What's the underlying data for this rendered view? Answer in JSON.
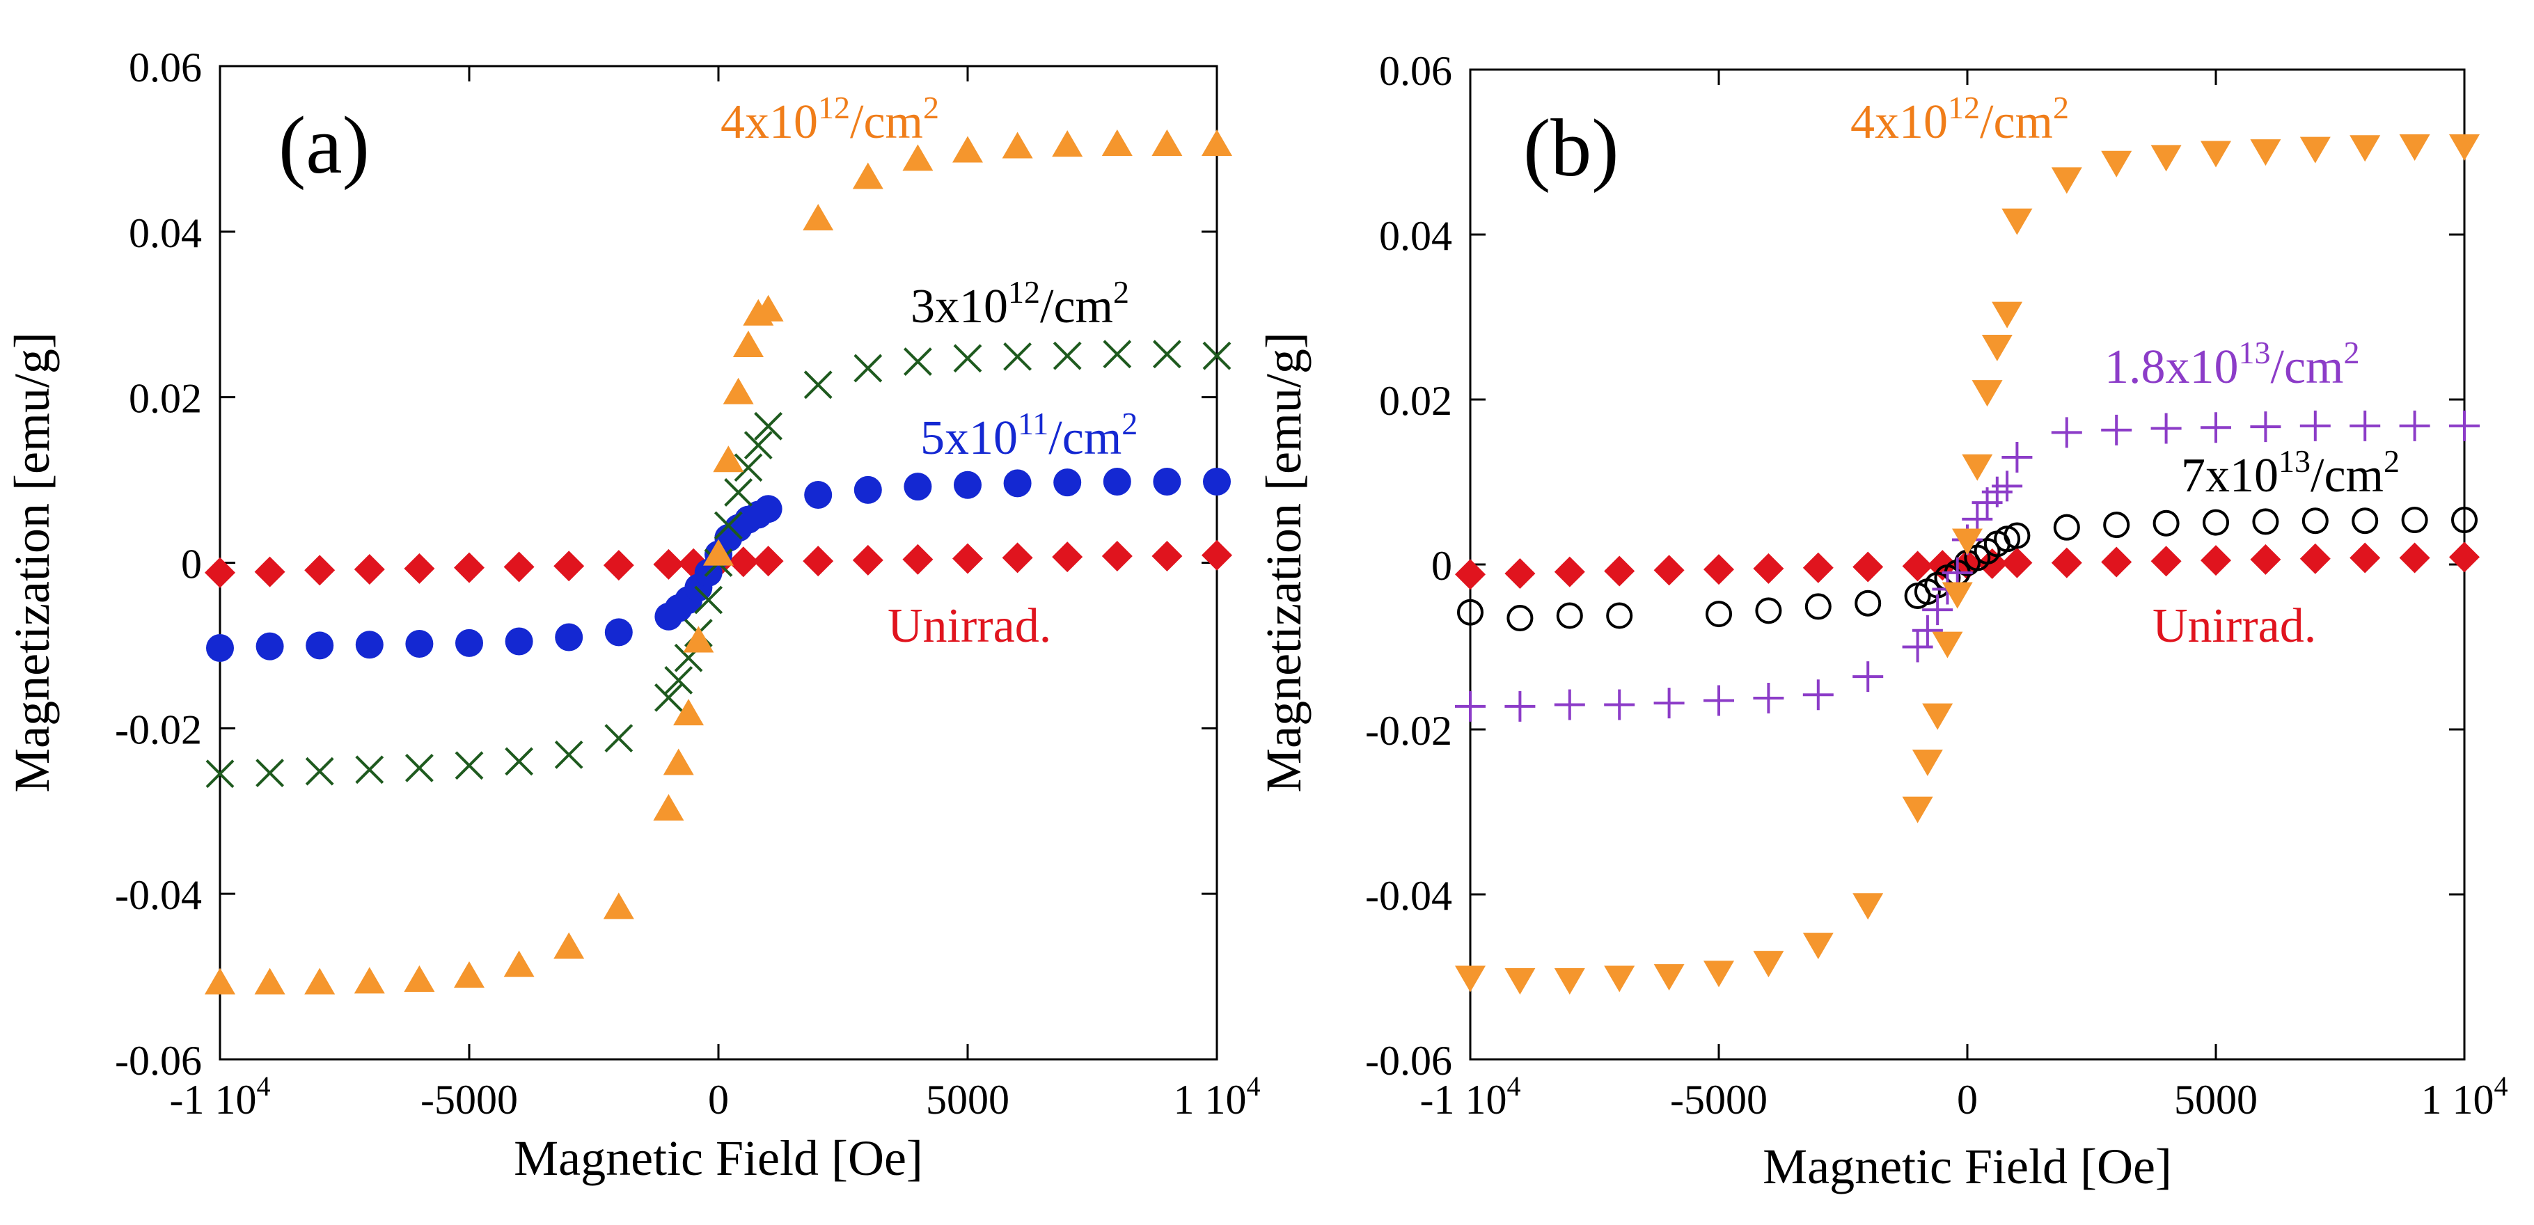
{
  "chart_data": [
    {
      "type": "scatter",
      "panel_label": "(a)",
      "xlabel": "Magnetic Field [Oe]",
      "ylabel": "Magnetization [emu/g]",
      "xlim": [
        -10000,
        10000
      ],
      "ylim": [
        -0.06,
        0.06
      ],
      "x_ticks": [
        {
          "value": -10000,
          "label": "-1 10"
        },
        {
          "value": -5000,
          "label": "-5000"
        },
        {
          "value": 0,
          "label": "0"
        },
        {
          "value": 5000,
          "label": "5000"
        },
        {
          "value": 10000,
          "label": "1 10"
        }
      ],
      "y_ticks": [
        {
          "value": -0.06,
          "label": "-0.06"
        },
        {
          "value": -0.04,
          "label": "-0.04"
        },
        {
          "value": -0.02,
          "label": "-0.02"
        },
        {
          "value": 0,
          "label": "0"
        },
        {
          "value": 0.02,
          "label": "0.02"
        },
        {
          "value": 0.04,
          "label": "0.04"
        },
        {
          "value": 0.06,
          "label": "0.06"
        }
      ],
      "tick_exponent": "4",
      "series": [
        {
          "name": "Unirrad.",
          "marker": "diamond",
          "color": "#e0141e",
          "x": [
            -10000,
            -9000,
            -8000,
            -7000,
            -6000,
            -5000,
            -4000,
            -3000,
            -2000,
            -1000,
            -500,
            0,
            500,
            1000,
            2000,
            3000,
            4000,
            5000,
            6000,
            7000,
            8000,
            9000,
            10000
          ],
          "y": [
            -0.0012,
            -0.0011,
            -0.0009,
            -0.0008,
            -0.0007,
            -0.0006,
            -0.0005,
            -0.0004,
            -0.0003,
            -0.0002,
            -0.0001,
            0.0,
            0.0001,
            0.0002,
            0.0002,
            0.0003,
            0.0004,
            0.0005,
            0.0006,
            0.0007,
            0.0008,
            0.0008,
            0.0009
          ]
        },
        {
          "name": "5x10^11/cm^2",
          "marker": "circle-filled",
          "color": "#1428d2",
          "x": [
            -10000,
            -9000,
            -8000,
            -7000,
            -6000,
            -5000,
            -4000,
            -3000,
            -2000,
            -1000,
            -800,
            -600,
            -400,
            -200,
            0,
            200,
            400,
            600,
            800,
            1000,
            2000,
            3000,
            4000,
            5000,
            6000,
            7000,
            8000,
            9000,
            10000
          ],
          "y": [
            -0.0103,
            -0.0101,
            -0.01,
            -0.0099,
            -0.0098,
            -0.0097,
            -0.0095,
            -0.009,
            -0.0084,
            -0.0065,
            -0.0055,
            -0.0045,
            -0.003,
            -0.0012,
            0.001,
            0.003,
            0.0042,
            0.0052,
            0.0058,
            0.0065,
            0.0082,
            0.0088,
            0.0092,
            0.0094,
            0.0096,
            0.0097,
            0.0098,
            0.0098,
            0.0098
          ]
        },
        {
          "name": "3x10^12/cm^2",
          "marker": "x",
          "color": "#1e5a1e",
          "x": [
            -10000,
            -9000,
            -8000,
            -7000,
            -6000,
            -5000,
            -4000,
            -3000,
            -2000,
            -1000,
            -800,
            -600,
            -400,
            -200,
            0,
            200,
            400,
            600,
            800,
            1000,
            2000,
            3000,
            4000,
            5000,
            6000,
            7000,
            8000,
            9000,
            10000
          ],
          "y": [
            -0.0255,
            -0.0254,
            -0.0252,
            -0.025,
            -0.0248,
            -0.0245,
            -0.024,
            -0.0232,
            -0.0212,
            -0.0163,
            -0.0142,
            -0.0115,
            -0.0085,
            -0.0045,
            0.0,
            0.0045,
            0.0085,
            0.0115,
            0.0142,
            0.0165,
            0.0215,
            0.0235,
            0.0243,
            0.0247,
            0.0249,
            0.025,
            0.0252,
            0.0252,
            0.025
          ]
        },
        {
          "name": "4x10^12/cm^2",
          "marker": "triangle-up",
          "color": "#f5962d",
          "x": [
            -10000,
            -9000,
            -8000,
            -7000,
            -6000,
            -5000,
            -4000,
            -3000,
            -2000,
            -1000,
            -800,
            -600,
            -400,
            0,
            200,
            400,
            600,
            800,
            1000,
            2000,
            3000,
            4000,
            5000,
            6000,
            7000,
            8000,
            9000,
            10000
          ],
          "y": [
            -0.0508,
            -0.0508,
            -0.0508,
            -0.0507,
            -0.0505,
            -0.05,
            -0.0487,
            -0.0465,
            -0.0417,
            -0.0298,
            -0.0243,
            -0.0183,
            -0.0095,
            0.001,
            0.0123,
            0.0205,
            0.0262,
            0.03,
            0.0305,
            0.0415,
            0.0465,
            0.0487,
            0.0497,
            0.0502,
            0.0504,
            0.0505,
            0.0505,
            0.0505
          ]
        }
      ],
      "annotations": [
        {
          "id": "orange",
          "base": "4x10",
          "exp": "12",
          "unit": "/cm",
          "pow": "2",
          "color": "#f07d19"
        },
        {
          "id": "black",
          "base": "3x10",
          "exp": "12",
          "unit": "/cm",
          "pow": "2",
          "color": "#000000"
        },
        {
          "id": "blue",
          "base": "5x10",
          "exp": "11",
          "unit": "/cm",
          "pow": "2",
          "color": "#1428d2"
        },
        {
          "id": "red",
          "text": "Unirrad.",
          "color": "#e0141e"
        }
      ]
    },
    {
      "type": "scatter",
      "panel_label": "(b)",
      "xlabel": "Magnetic Field [Oe]",
      "ylabel": "Magnetization [emu/g]",
      "xlim": [
        -10000,
        10000
      ],
      "ylim": [
        -0.06,
        0.06
      ],
      "x_ticks": [
        {
          "value": -10000,
          "label": "-1 10"
        },
        {
          "value": -5000,
          "label": "-5000"
        },
        {
          "value": 0,
          "label": "0"
        },
        {
          "value": 5000,
          "label": "5000"
        },
        {
          "value": 10000,
          "label": "1 10"
        }
      ],
      "y_ticks": [
        {
          "value": -0.06,
          "label": "-0.06"
        },
        {
          "value": -0.04,
          "label": "-0.04"
        },
        {
          "value": -0.02,
          "label": "-0.02"
        },
        {
          "value": 0,
          "label": "0"
        },
        {
          "value": 0.02,
          "label": "0.02"
        },
        {
          "value": 0.04,
          "label": "0.04"
        },
        {
          "value": 0.06,
          "label": "0.06"
        }
      ],
      "tick_exponent": "4",
      "series": [
        {
          "name": "Unirrad.",
          "marker": "diamond",
          "color": "#e0141e",
          "x": [
            -10000,
            -9000,
            -8000,
            -7000,
            -6000,
            -5000,
            -4000,
            -3000,
            -2000,
            -1000,
            -500,
            0,
            500,
            1000,
            2000,
            3000,
            4000,
            5000,
            6000,
            7000,
            8000,
            9000,
            10000
          ],
          "y": [
            -0.0012,
            -0.0011,
            -0.0009,
            -0.0008,
            -0.0007,
            -0.0006,
            -0.0005,
            -0.0004,
            -0.0003,
            -0.0002,
            -0.0001,
            0.0,
            0.0001,
            0.0002,
            0.0002,
            0.0003,
            0.0004,
            0.0005,
            0.0006,
            0.0007,
            0.0008,
            0.0008,
            0.0009
          ]
        },
        {
          "name": "7x10^13/cm^2",
          "marker": "circle-open",
          "color": "#000000",
          "x": [
            -10000,
            -9000,
            -8000,
            -7000,
            -5000,
            -4000,
            -3000,
            -2000,
            -1000,
            -800,
            -600,
            -400,
            -200,
            0,
            200,
            400,
            600,
            800,
            1000,
            2000,
            3000,
            4000,
            5000,
            6000,
            7000,
            8000,
            9000,
            10000
          ],
          "y": [
            -0.0058,
            -0.0065,
            -0.0062,
            -0.0062,
            -0.006,
            -0.0056,
            -0.0051,
            -0.0047,
            -0.0038,
            -0.0033,
            -0.0025,
            -0.0016,
            -0.001,
            0.0002,
            0.0008,
            0.0016,
            0.0025,
            0.0031,
            0.0035,
            0.0045,
            0.0048,
            0.005,
            0.0051,
            0.0052,
            0.0053,
            0.0053,
            0.0054,
            0.0054
          ]
        },
        {
          "name": "1.8x10^13/cm^2",
          "marker": "plus",
          "color": "#8c3cc8",
          "x": [
            -10000,
            -9000,
            -8000,
            -7000,
            -6000,
            -5000,
            -4000,
            -3000,
            -2000,
            -1000,
            -800,
            -600,
            -400,
            -200,
            0,
            200,
            400,
            600,
            800,
            1000,
            2000,
            3000,
            4000,
            5000,
            6000,
            7000,
            8000,
            9000,
            10000
          ],
          "y": [
            -0.0172,
            -0.0172,
            -0.017,
            -0.017,
            -0.0168,
            -0.0165,
            -0.0162,
            -0.0158,
            -0.0136,
            -0.01,
            -0.008,
            -0.0055,
            -0.003,
            -0.001,
            0.003,
            0.0055,
            0.0075,
            0.0088,
            0.0095,
            0.013,
            0.016,
            0.0163,
            0.0165,
            0.0166,
            0.0167,
            0.0168,
            0.0168,
            0.0168,
            0.0168
          ]
        },
        {
          "name": "4x10^12/cm^2",
          "marker": "triangle-down",
          "color": "#f5962d",
          "x": [
            -10000,
            -9000,
            -8000,
            -7000,
            -6000,
            -5000,
            -4000,
            -3000,
            -2000,
            -1000,
            -800,
            -600,
            -400,
            -200,
            0,
            200,
            400,
            600,
            800,
            1000,
            2000,
            3000,
            4000,
            5000,
            6000,
            7000,
            8000,
            9000,
            10000
          ],
          "y": [
            -0.05,
            -0.0503,
            -0.0503,
            -0.05,
            -0.0498,
            -0.0494,
            -0.0482,
            -0.046,
            -0.0412,
            -0.0295,
            -0.0238,
            -0.0182,
            -0.0095,
            -0.0035,
            0.003,
            0.012,
            0.021,
            0.0265,
            0.0305,
            0.0418,
            0.0468,
            0.0488,
            0.0495,
            0.05,
            0.0502,
            0.0505,
            0.0507,
            0.0508,
            0.0508
          ]
        }
      ],
      "annotations": [
        {
          "id": "orange",
          "base": "4x10",
          "exp": "12",
          "unit": "/cm",
          "pow": "2",
          "color": "#f07d19"
        },
        {
          "id": "purple",
          "base": "1.8x10",
          "exp": "13",
          "unit": "/cm",
          "pow": "2",
          "color": "#8c3cc8"
        },
        {
          "id": "black",
          "base": "7x10",
          "exp": "13",
          "unit": "/cm",
          "pow": "2",
          "color": "#000000"
        },
        {
          "id": "red",
          "text": "Unirrad.",
          "color": "#e0141e"
        }
      ]
    }
  ]
}
